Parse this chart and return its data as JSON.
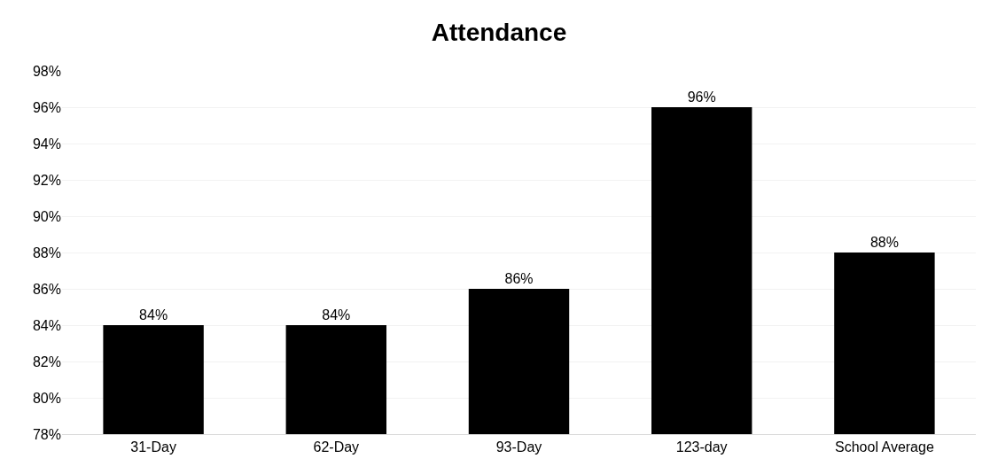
{
  "chart_data": {
    "type": "bar",
    "title": "Attendance",
    "categories": [
      "31-Day",
      "62-Day",
      "93-Day",
      "123-day",
      "School Average"
    ],
    "values": [
      84,
      84,
      86,
      96,
      88
    ],
    "value_labels": [
      "84%",
      "84%",
      "86%",
      "96%",
      "88%"
    ],
    "color": "#000000",
    "ylim": [
      78,
      98
    ],
    "yticks": [
      {
        "value": 78,
        "label": "78%"
      },
      {
        "value": 80,
        "label": "80%"
      },
      {
        "value": 82,
        "label": "82%"
      },
      {
        "value": 84,
        "label": "84%"
      },
      {
        "value": 86,
        "label": "86%"
      },
      {
        "value": 88,
        "label": "88%"
      },
      {
        "value": 90,
        "label": "90%"
      },
      {
        "value": 92,
        "label": "92%"
      },
      {
        "value": 94,
        "label": "94%"
      },
      {
        "value": 96,
        "label": "96%"
      },
      {
        "value": 98,
        "label": "98%"
      }
    ],
    "grid": "y"
  }
}
